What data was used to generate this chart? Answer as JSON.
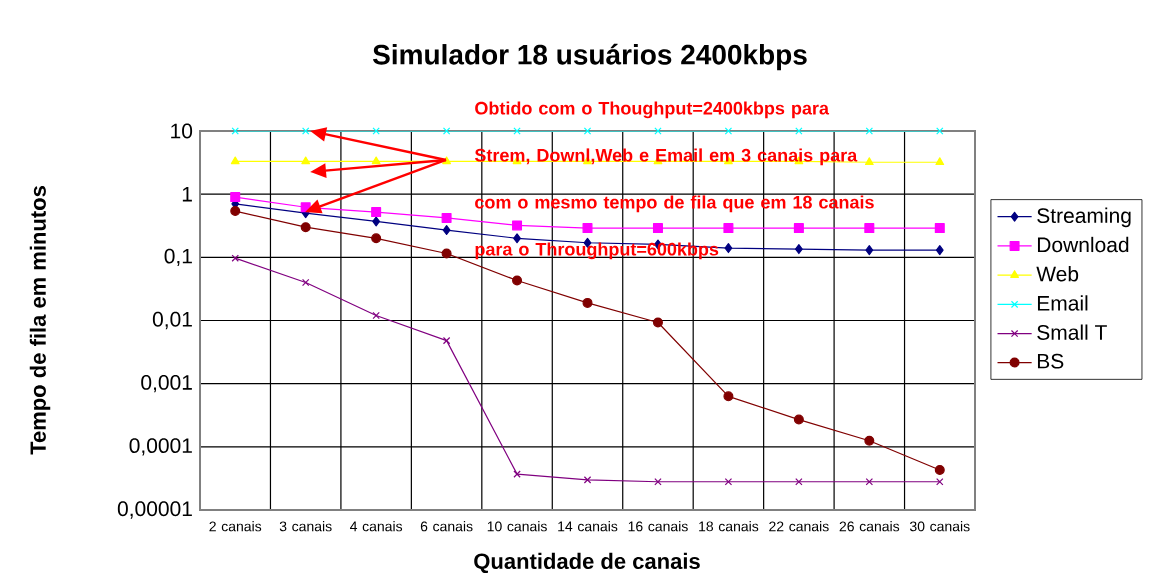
{
  "chart_data": {
    "type": "line",
    "title": "Simulador 18 usuários 2400kbps",
    "xlabel": "Quantidade de canais",
    "ylabel": "Tempo de fila em minutos",
    "categories": [
      "2 canais",
      "3 canais",
      "4 canais",
      "6 canais",
      "10 canais",
      "14 canais",
      "16 canais",
      "18 canais",
      "22 canais",
      "26 canais",
      "30 canais"
    ],
    "series": [
      {
        "name": "Streaming",
        "color": "#000080",
        "marker": "diamond",
        "values": [
          0.7,
          0.5,
          0.37,
          0.27,
          0.2,
          0.17,
          0.16,
          0.14,
          0.135,
          0.13,
          0.13
        ]
      },
      {
        "name": "Download",
        "color": "#ff00ff",
        "marker": "square",
        "values": [
          0.9,
          0.62,
          0.52,
          0.42,
          0.32,
          0.29,
          0.29,
          0.29,
          0.29,
          0.29,
          0.29
        ]
      },
      {
        "name": "Web",
        "color": "#ffff00",
        "marker": "triangle",
        "values": [
          3.3,
          3.3,
          3.3,
          3.3,
          3.3,
          3.3,
          3.3,
          3.3,
          3.3,
          3.2,
          3.2
        ]
      },
      {
        "name": "Email",
        "color": "#00ffff",
        "marker": "cross",
        "values": [
          10,
          10,
          10,
          10,
          10,
          10,
          10,
          10,
          10,
          10,
          10
        ]
      },
      {
        "name": "Small T",
        "color": "#800080",
        "marker": "cross",
        "values": [
          0.097,
          0.04,
          0.012,
          0.0048,
          3.7e-05,
          3e-05,
          2.8e-05,
          2.8e-05,
          2.8e-05,
          2.8e-05,
          2.8e-05
        ]
      },
      {
        "name": "BS",
        "color": "#800000",
        "marker": "circle",
        "values": [
          0.54,
          0.3,
          0.2,
          0.115,
          0.043,
          0.019,
          0.0093,
          0.00063,
          0.00027,
          0.000125,
          4.3e-05
        ]
      }
    ],
    "log": "y",
    "ylim": [
      1e-05,
      10
    ],
    "yticks": [
      {
        "value": 1e-05,
        "label": "0,00001"
      },
      {
        "value": 0.0001,
        "label": "0,0001"
      },
      {
        "value": 0.001,
        "label": "0,001"
      },
      {
        "value": 0.01,
        "label": "0,01"
      },
      {
        "value": 0.1,
        "label": "0,1"
      },
      1,
      10
    ],
    "grid": true,
    "legend": "right",
    "annotations": [
      "Obtido com o Thoughput=2400kbps para Strem, Downl,Web e Email em 3 canais para com o mesmo tempo de fila que em 18 canais para o Throughput=600kbps"
    ]
  }
}
